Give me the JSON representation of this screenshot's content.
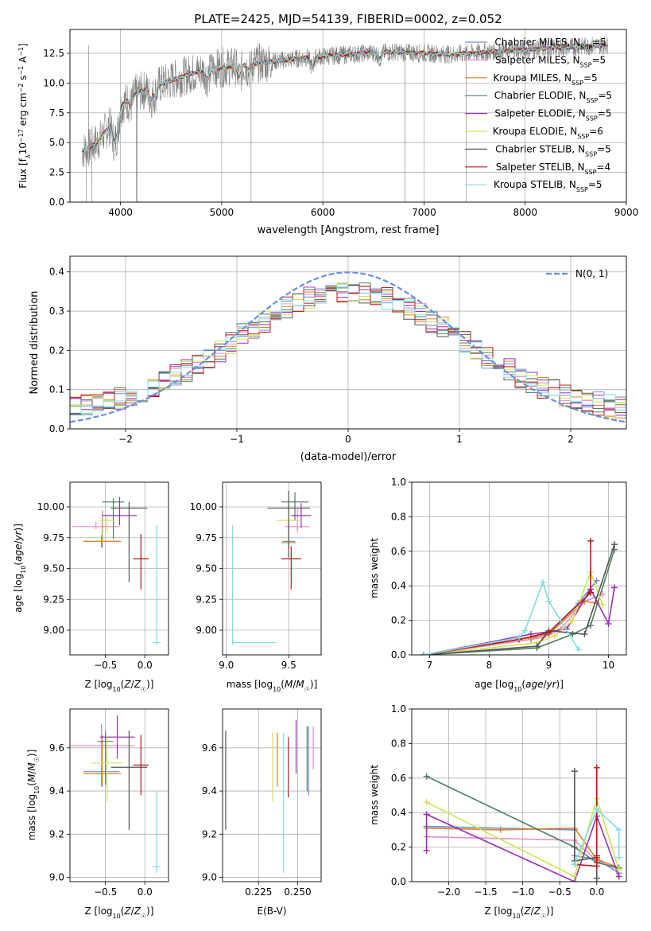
{
  "figure_title": "PLATE=2425, MJD=54139, FIBERID=0002, z=0.052",
  "colors": {
    "Chabrier MILES": "#6a8fd6",
    "Salpeter MILES": "#e68fc8",
    "Kroupa MILES": "#d9822b",
    "Chabrier ELODIE": "#4f7f5f",
    "Salpeter ELODIE": "#9b2fb5",
    "Kroupa ELODIE": "#d4e157",
    "Chabrier STELIB": "#555555",
    "Salpeter STELIB": "#b51a1a",
    "Kroupa STELIB": "#80dede",
    "data": "#808080",
    "normal": "#6a8fd6"
  },
  "panel_spectrum": {
    "xlabel": "wavelength [Angstrom, rest frame]",
    "ylabel": "Flux [fλ10⁻¹⁷ erg cm⁻² s⁻¹ A⁻¹]",
    "xticks": [
      "4000",
      "5000",
      "6000",
      "7000",
      "8000",
      "9000"
    ],
    "yticks": [
      "0.0",
      "2.5",
      "5.0",
      "7.5",
      "10.0",
      "12.5"
    ],
    "legend": [
      "Chabrier MILES, N_SSP=5",
      "Salpeter MILES, N_SSP=5",
      "Kroupa MILES, N_SSP=5",
      "Chabrier ELODIE, N_SSP=5",
      "Salpeter ELODIE, N_SSP=5",
      "Kroupa ELODIE, N_SSP=6",
      "Chabrier STELIB, N_SSP=5",
      "Salpeter STELIB, N_SSP=4",
      "Kroupa STELIB, N_SSP=5"
    ]
  },
  "panel_hist": {
    "xlabel": "(data-model)/error",
    "ylabel": "Normed distribution",
    "xticks": [
      "−2",
      "−1",
      "0",
      "1",
      "2"
    ],
    "yticks": [
      "0.0",
      "0.1",
      "0.2",
      "0.3",
      "0.4"
    ],
    "legend": "N(0, 1)"
  },
  "panel_age_Z": {
    "xlabel": "Z [log10(Z/Z☉)]",
    "ylabel": "age [log10(age/yr)]",
    "xticks": [
      "−0.5",
      "0.0"
    ],
    "yticks": [
      "9.00",
      "9.25",
      "9.50",
      "9.75",
      "10.00"
    ]
  },
  "panel_age_mass": {
    "xlabel": "mass [log10(M/M☉)]",
    "xticks": [
      "9.0",
      "9.5"
    ],
    "yticks": [
      "9.00",
      "9.25",
      "9.50",
      "9.75",
      "10.00"
    ]
  },
  "panel_mw_age": {
    "xlabel": "age [log10(age/yr)]",
    "ylabel": "mass weight",
    "xticks": [
      "7",
      "8",
      "9",
      "10"
    ],
    "yticks": [
      "0.0",
      "0.2",
      "0.4",
      "0.6",
      "0.8",
      "1.0"
    ]
  },
  "panel_mass_Z": {
    "xlabel": "Z [log10(Z/Z☉)]",
    "ylabel": "mass [log10(M/M☉)]",
    "xticks": [
      "−0.5",
      "0.0"
    ],
    "yticks": [
      "9.0",
      "9.2",
      "9.4",
      "9.6"
    ]
  },
  "panel_mass_ebv": {
    "xlabel": "E(B-V)",
    "xticks": [
      "0.225",
      "0.250"
    ],
    "yticks": [
      "9.0",
      "9.2",
      "9.4",
      "9.6"
    ]
  },
  "panel_mw_Z": {
    "xlabel": "Z [log10(Z/Z☉)]",
    "ylabel": "mass weight",
    "xticks": [
      "−2.0",
      "−1.5",
      "−1.0",
      "−0.5",
      "0.0"
    ],
    "yticks": [
      "0.0",
      "0.2",
      "0.4",
      "0.6",
      "0.8",
      "1.0"
    ]
  },
  "chart_data": [
    {
      "type": "line",
      "title": "PLATE=2425, MJD=54139, FIBERID=0002, z=0.052",
      "xlabel": "wavelength [Angstrom, rest frame]",
      "ylabel": "Flux [fλ10⁻¹⁷ erg cm⁻² s⁻¹ A⁻¹]",
      "xlim": [
        3500,
        9000
      ],
      "ylim": [
        0,
        14.5
      ],
      "grid": true,
      "legend_position": "top-right",
      "continuum_model": {
        "x": [
          3620,
          3700,
          3800,
          3900,
          4000,
          4100,
          4200,
          4300,
          4500,
          4700,
          4900,
          5100,
          5300,
          5500,
          5800,
          6100,
          6400,
          6700,
          7000,
          7300,
          7600,
          8000,
          8400,
          8800
        ],
        "y": [
          4.3,
          4.6,
          5.3,
          6.6,
          8.0,
          8.9,
          9.3,
          9.6,
          10.2,
          10.8,
          11.2,
          11.4,
          11.6,
          11.8,
          12.1,
          12.3,
          12.5,
          12.6,
          12.5,
          12.4,
          12.6,
          12.8,
          13.0,
          13.2
        ]
      }
    },
    {
      "type": "bar",
      "xlabel": "(data-model)/error",
      "ylabel": "Normed distribution",
      "xlim": [
        -2.5,
        2.5
      ],
      "ylim": [
        0,
        0.44
      ],
      "grid": true,
      "legend_position": "top-right",
      "reference_curve": "N(0, 1)",
      "bin_width": 0.1
    },
    {
      "type": "scatter",
      "xlabel": "Z [log10(Z/Z☉)]",
      "ylabel": "age [log10(age/yr)]",
      "xlim": [
        -0.95,
        0.3
      ],
      "ylim": [
        8.8,
        10.2
      ],
      "grid": true,
      "series": [
        {
          "name": "Chabrier MILES",
          "x": -0.55,
          "y": 9.72,
          "xerr": 0.23,
          "yerr_lo": 0.05,
          "yerr_hi": 0.05
        },
        {
          "name": "Salpeter MILES",
          "x": -0.62,
          "y": 9.84,
          "xerr": 0.3,
          "yerr_lo": 0.02,
          "yerr_hi": 0.04
        },
        {
          "name": "Kroupa MILES",
          "x": -0.54,
          "y": 9.72,
          "xerr": 0.24,
          "yerr_lo": 0.05,
          "yerr_hi": 0.25
        },
        {
          "name": "Chabrier ELODIE",
          "x": -0.4,
          "y": 10.04,
          "xerr": 0.14,
          "yerr_lo": 0.3,
          "yerr_hi": 0.03
        },
        {
          "name": "Salpeter ELODIE",
          "x": -0.32,
          "y": 9.93,
          "xerr": 0.22,
          "yerr_lo": 0.08,
          "yerr_hi": 0.15
        },
        {
          "name": "Kroupa ELODIE",
          "x": -0.48,
          "y": 9.89,
          "xerr": 0.1,
          "yerr_lo": 0.1,
          "yerr_hi": 0.02
        },
        {
          "name": "Chabrier STELIB",
          "x": -0.2,
          "y": 9.99,
          "xerr": 0.23,
          "yerr_lo": 0.6,
          "yerr_hi": 0.05
        },
        {
          "name": "Salpeter STELIB",
          "x": -0.05,
          "y": 9.58,
          "xerr": 0.1,
          "yerr_lo": 0.25,
          "yerr_hi": 0.2
        },
        {
          "name": "Kroupa STELIB",
          "x": 0.15,
          "y": 8.9,
          "xerr": 0.05,
          "yerr_lo": 0.02,
          "yerr_hi": 0.95
        }
      ]
    },
    {
      "type": "scatter",
      "xlabel": "mass [log10(M/M☉)]",
      "ylabel": "",
      "xlim": [
        8.97,
        9.76
      ],
      "ylim": [
        8.8,
        10.2
      ],
      "grid": true,
      "series": [
        {
          "name": "Chabrier MILES",
          "x": 9.5,
          "y": 9.72,
          "xerr": 0.05,
          "yerr_lo": 0.05,
          "yerr_hi": 0.25
        },
        {
          "name": "Salpeter MILES",
          "x": 9.57,
          "y": 9.84,
          "xerr": 0.1,
          "yerr_lo": 0.05,
          "yerr_hi": 0.15
        },
        {
          "name": "Kroupa MILES",
          "x": 9.5,
          "y": 9.71,
          "xerr": 0.06,
          "yerr_lo": 0.05,
          "yerr_hi": 0.3
        },
        {
          "name": "Chabrier ELODIE",
          "x": 9.55,
          "y": 10.04,
          "xerr": 0.11,
          "yerr_lo": 0.15,
          "yerr_hi": 0.08
        },
        {
          "name": "Salpeter ELODIE",
          "x": 9.6,
          "y": 9.93,
          "xerr": 0.08,
          "yerr_lo": 0.1,
          "yerr_hi": 0.1
        },
        {
          "name": "Kroupa ELODIE",
          "x": 9.5,
          "y": 9.89,
          "xerr": 0.1,
          "yerr_lo": 0.05,
          "yerr_hi": 0.15
        },
        {
          "name": "Chabrier STELIB",
          "x": 9.5,
          "y": 9.99,
          "xerr": 0.17,
          "yerr_lo": 0.4,
          "yerr_hi": 0.14
        },
        {
          "name": "Salpeter STELIB",
          "x": 9.52,
          "y": 9.58,
          "xerr": 0.08,
          "yerr_lo": 0.25,
          "yerr_hi": 0.1
        },
        {
          "name": "Kroupa STELIB",
          "x": 9.05,
          "y": 8.9,
          "xerr_lo": 0.0,
          "xerr_hi": 0.35,
          "yerr_lo": 0.02,
          "yerr_hi": 0.95
        }
      ]
    },
    {
      "type": "line",
      "xlabel": "age [log10(age/yr)]",
      "ylabel": "mass weight",
      "xlim": [
        6.7,
        10.3
      ],
      "ylim": [
        0,
        1
      ],
      "grid": true,
      "series": [
        {
          "name": "Chabrier MILES",
          "x": [
            6.9,
            8.7,
            9.0,
            9.5,
            9.8
          ],
          "y": [
            0.0,
            0.09,
            0.13,
            0.3,
            0.43
          ]
        },
        {
          "name": "Salpeter MILES",
          "x": [
            6.9,
            8.9,
            9.2,
            9.6,
            9.9
          ],
          "y": [
            0.0,
            0.1,
            0.15,
            0.31,
            0.35
          ]
        },
        {
          "name": "Kroupa MILES",
          "x": [
            6.9,
            8.7,
            9.0,
            9.6,
            9.8
          ],
          "y": [
            0.0,
            0.1,
            0.12,
            0.31,
            0.3
          ]
        },
        {
          "name": "Chabrier ELODIE",
          "x": [
            6.9,
            8.8,
            9.4,
            9.7,
            10.1
          ],
          "y": [
            0.0,
            0.04,
            0.12,
            0.17,
            0.61
          ]
        },
        {
          "name": "Salpeter ELODIE",
          "x": [
            6.9,
            8.7,
            9.3,
            9.7,
            10.0,
            10.1
          ],
          "y": [
            0.0,
            0.12,
            0.15,
            0.38,
            0.18,
            0.39
          ]
        },
        {
          "name": "Kroupa ELODIE",
          "x": [
            6.9,
            8.8,
            9.1,
            9.4,
            9.7,
            9.9
          ],
          "y": [
            0.0,
            0.07,
            0.11,
            0.2,
            0.48,
            0.29
          ]
        },
        {
          "name": "Chabrier STELIB",
          "x": [
            6.9,
            8.8,
            9.0,
            9.6,
            10.1
          ],
          "y": [
            0.0,
            0.05,
            0.14,
            0.12,
            0.64
          ]
        },
        {
          "name": "Salpeter STELIB",
          "x": [
            6.9,
            8.5,
            9.0,
            9.7,
            9.7
          ],
          "y": [
            0.0,
            0.09,
            0.13,
            0.36,
            0.66
          ]
        },
        {
          "name": "Kroupa STELIB",
          "x": [
            6.9,
            8.5,
            8.6,
            8.9,
            9.0,
            9.5
          ],
          "y": [
            0.0,
            0.1,
            0.14,
            0.42,
            0.31,
            0.03
          ]
        }
      ]
    },
    {
      "type": "scatter",
      "xlabel": "Z [log10(Z/Z☉)]",
      "ylabel": "mass [log10(M/M☉)]",
      "xlim": [
        -0.95,
        0.3
      ],
      "ylim": [
        8.98,
        9.78
      ],
      "grid": true,
      "series": [
        {
          "name": "Chabrier MILES",
          "x": -0.55,
          "y": 9.49,
          "xerr": 0.23,
          "yerr_lo": 0.07,
          "yerr_hi": 0.22
        },
        {
          "name": "Salpeter MILES",
          "x": -0.55,
          "y": 9.61,
          "xerr": 0.42,
          "yerr_lo": 0.1,
          "yerr_hi": 0.1
        },
        {
          "name": "Kroupa MILES",
          "x": -0.54,
          "y": 9.48,
          "xerr": 0.24,
          "yerr_lo": 0.06,
          "yerr_hi": 0.18
        },
        {
          "name": "Chabrier ELODIE",
          "x": -0.5,
          "y": 9.63,
          "xerr": 0.1,
          "yerr_lo": 0.2,
          "yerr_hi": 0.05
        },
        {
          "name": "Salpeter ELODIE",
          "x": -0.35,
          "y": 9.65,
          "xerr": 0.22,
          "yerr_lo": 0.1,
          "yerr_hi": 0.1
        },
        {
          "name": "Kroupa ELODIE",
          "x": -0.48,
          "y": 9.53,
          "xerr": 0.2,
          "yerr_lo": 0.18,
          "yerr_hi": 0.12
        },
        {
          "name": "Chabrier STELIB",
          "x": -0.2,
          "y": 9.51,
          "xerr": 0.23,
          "yerr_lo": 0.29,
          "yerr_hi": 0.17
        },
        {
          "name": "Salpeter STELIB",
          "x": -0.05,
          "y": 9.52,
          "xerr": 0.1,
          "yerr_lo": 0.14,
          "yerr_hi": 0.14
        },
        {
          "name": "Kroupa STELIB",
          "x": 0.15,
          "y": 9.05,
          "xerr": 0.05,
          "yerr_lo": 0.03,
          "yerr_hi": 0.35
        }
      ]
    },
    {
      "type": "scatter",
      "xlabel": "E(B-V)",
      "ylabel": "",
      "xlim": [
        0.202,
        0.265
      ],
      "ylim": [
        8.98,
        9.78
      ],
      "grid": true,
      "series": [
        {
          "name": "Chabrier MILES",
          "x": 0.257,
          "y": 9.5,
          "yerr_lo": 0.12,
          "yerr_hi": 0.2
        },
        {
          "name": "Salpeter MILES",
          "x": 0.26,
          "y": 9.6,
          "yerr_lo": 0.1,
          "yerr_hi": 0.1
        },
        {
          "name": "Kroupa MILES",
          "x": 0.237,
          "y": 9.52,
          "yerr_lo": 0.1,
          "yerr_hi": 0.15
        },
        {
          "name": "Chabrier ELODIE",
          "x": 0.256,
          "y": 9.5,
          "yerr_lo": 0.1,
          "yerr_hi": 0.2
        },
        {
          "name": "Salpeter ELODIE",
          "x": 0.249,
          "y": 9.58,
          "yerr_lo": 0.1,
          "yerr_hi": 0.15
        },
        {
          "name": "Kroupa ELODIE",
          "x": 0.234,
          "y": 9.5,
          "yerr_lo": 0.15,
          "yerr_hi": 0.17
        },
        {
          "name": "Chabrier STELIB",
          "x": 0.204,
          "y": 9.45,
          "yerr_lo": 0.23,
          "yerr_hi": 0.23
        },
        {
          "name": "Salpeter STELIB",
          "x": 0.244,
          "y": 9.5,
          "yerr_lo": 0.13,
          "yerr_hi": 0.15
        },
        {
          "name": "Kroupa STELIB",
          "x": 0.241,
          "y": 9.35,
          "yerr_lo": 0.33,
          "yerr_hi": 0.32
        }
      ]
    },
    {
      "type": "line",
      "xlabel": "Z [log10(Z/Z☉)]",
      "ylabel": "mass weight",
      "xlim": [
        -2.5,
        0.4
      ],
      "ylim": [
        0,
        1
      ],
      "grid": true,
      "series": [
        {
          "name": "Chabrier MILES",
          "x": [
            -2.3,
            -0.3,
            -0.3,
            0.0,
            0.3
          ],
          "y": [
            0.32,
            0.3,
            0.15,
            0.13,
            0.05
          ]
        },
        {
          "name": "Salpeter MILES",
          "x": [
            -2.3,
            -0.3,
            0.0,
            0.3
          ],
          "y": [
            0.26,
            0.24,
            0.12,
            0.07
          ]
        },
        {
          "name": "Kroupa MILES",
          "x": [
            -2.3,
            -1.3,
            -0.3,
            0.0,
            0.3
          ],
          "y": [
            0.31,
            0.3,
            0.31,
            0.13,
            0.08
          ]
        },
        {
          "name": "Chabrier ELODIE",
          "x": [
            -2.3,
            -0.3,
            0.0,
            0.3
          ],
          "y": [
            0.61,
            0.2,
            0.11,
            0.08
          ]
        },
        {
          "name": "Salpeter ELODIE",
          "x": [
            -2.3,
            -2.3,
            -0.3,
            0.0,
            0.3
          ],
          "y": [
            0.18,
            0.39,
            0.0,
            0.38,
            0.03
          ]
        },
        {
          "name": "Kroupa ELODIE",
          "x": [
            -2.3,
            -0.3,
            0.0,
            0.3
          ],
          "y": [
            0.46,
            0.03,
            0.48,
            0.07
          ]
        },
        {
          "name": "Chabrier STELIB",
          "x": [
            -0.3,
            -0.3,
            0.0,
            0.0
          ],
          "y": [
            0.64,
            0.12,
            0.14,
            0.02
          ]
        },
        {
          "name": "Salpeter STELIB",
          "x": [
            -0.3,
            0.0,
            0.0,
            0.0
          ],
          "y": [
            0.1,
            0.09,
            0.66,
            0.15
          ]
        },
        {
          "name": "Kroupa STELIB",
          "x": [
            -0.3,
            0.0,
            0.3,
            0.3
          ],
          "y": [
            0.1,
            0.42,
            0.3,
            0.14
          ]
        }
      ]
    }
  ]
}
